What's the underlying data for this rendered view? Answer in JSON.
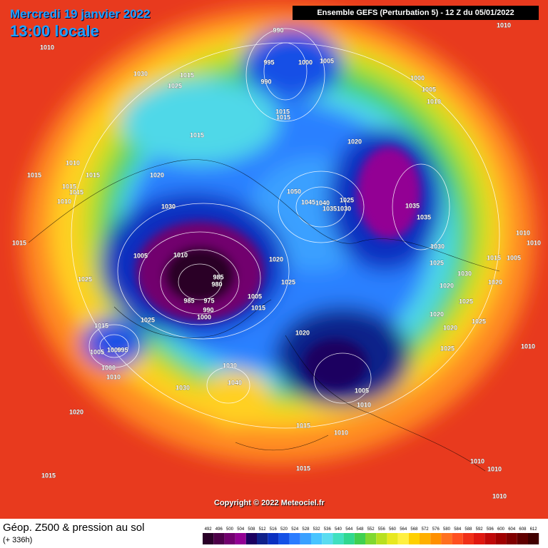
{
  "header": {
    "date": "Mercredi 19 janvier 2022",
    "time": "13:00 locale",
    "model": "Ensemble GEFS  (Perturbation 5)  -  12 Z du 05/01/2022"
  },
  "footer": {
    "title": "Géop. Z500 & pression au sol",
    "lead": "(+ 336h)",
    "copyright": "Copyright © 2022 Meteociel.fr"
  },
  "scale": {
    "ticks": [
      492,
      496,
      500,
      504,
      508,
      512,
      516,
      520,
      524,
      528,
      532,
      536,
      540,
      544,
      548,
      552,
      556,
      560,
      564,
      568,
      572,
      576,
      580,
      584,
      588,
      592,
      596,
      600,
      604,
      608,
      612
    ],
    "colors": [
      "#2a0028",
      "#4d0048",
      "#72006e",
      "#930094",
      "#1c0060",
      "#10208a",
      "#0a2fc0",
      "#1450e6",
      "#2a7cff",
      "#3aa0ff",
      "#48c4ff",
      "#5adcf0",
      "#40e0c0",
      "#30d890",
      "#40d050",
      "#80d830",
      "#b8e020",
      "#e8e820",
      "#fff040",
      "#ffd000",
      "#ffb000",
      "#ff9000",
      "#ff7020",
      "#ff5020",
      "#f03018",
      "#e01810",
      "#c00808",
      "#a00000",
      "#800000",
      "#600000",
      "#400000"
    ]
  },
  "pressure_labels": [
    "990",
    "995",
    "1000",
    "1005",
    "990",
    "1010",
    "1010",
    "1030",
    "1015",
    "1025",
    "1000",
    "1005",
    "1010",
    "1015",
    "1015",
    "1015",
    "1020",
    "1010",
    "1015",
    "1015",
    "1020",
    "1015",
    "1015",
    "1050",
    "1025",
    "1045",
    "1040",
    "1035",
    "1030",
    "1010",
    "1030",
    "1035",
    "1035",
    "1015",
    "1010",
    "1010",
    "1005",
    "1010",
    "1020",
    "1015",
    "1005",
    "1030",
    "1025",
    "985",
    "980",
    "1030",
    "1025",
    "1025",
    "1020",
    "1020",
    "1005",
    "985",
    "975",
    "1015",
    "990",
    "1000",
    "1025",
    "1025",
    "1020",
    "1025",
    "1015",
    "1020",
    "1020",
    "1005",
    "1000",
    "995",
    "1025",
    "1010",
    "1030",
    "1000",
    "1010",
    "1040",
    "1030",
    "1005",
    "1010",
    "1020",
    "1015",
    "1010",
    "1015",
    "1015",
    "1010",
    "1010",
    "1010"
  ]
}
